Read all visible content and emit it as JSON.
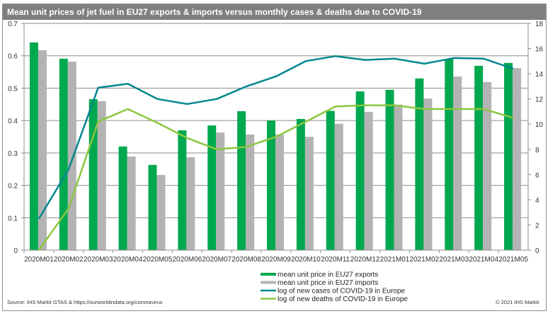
{
  "chart_data": {
    "type": "bar",
    "title": "Mean unit prices of jet fuel in EU27 exports & imports versus monthly cases & deaths due to COVID-19",
    "xlabel": "",
    "ylabel": "",
    "categories": [
      "2020M01",
      "2020M02",
      "2020M03",
      "2020M04",
      "2020M05",
      "2020M06",
      "2020M07",
      "2020M08",
      "2020M09",
      "2020M10",
      "2020M11",
      "2020M12",
      "2021M01",
      "2021M02",
      "2021M03",
      "2021M04",
      "2021M05"
    ],
    "ylim": [
      0,
      0.7
    ],
    "y_ticks": [
      "0",
      "0.1",
      "0.2",
      "0.3",
      "0.4",
      "0.5",
      "0.6",
      "0.7"
    ],
    "y2lim": [
      0,
      18
    ],
    "y2_ticks": [
      "0",
      "2",
      "4",
      "6",
      "8",
      "10",
      "12",
      "14",
      "16",
      "18"
    ],
    "grid": true,
    "legend_position": "bottom-center",
    "series": [
      {
        "name": "mean unit price in EU27 exports",
        "type": "bar",
        "axis": "left",
        "color": "#00a84f",
        "values": [
          0.641,
          0.591,
          0.466,
          0.32,
          0.263,
          0.37,
          0.385,
          0.429,
          0.4,
          0.405,
          0.43,
          0.49,
          0.495,
          0.53,
          0.59,
          0.569,
          0.578
        ]
      },
      {
        "name": "mean unit price in EU27 imports",
        "type": "bar",
        "axis": "left",
        "color": "#b3b3b3",
        "values": [
          0.617,
          0.582,
          0.46,
          0.289,
          0.232,
          0.287,
          0.363,
          0.357,
          0.357,
          0.35,
          0.39,
          0.427,
          0.449,
          0.468,
          0.536,
          0.519,
          0.562
        ]
      },
      {
        "name": "log of new  cases of COVID-19 in Europe",
        "type": "line",
        "axis": "right",
        "color": "#00878f",
        "values": [
          2.5,
          6.4,
          12.9,
          13.2,
          12.0,
          11.6,
          12.0,
          13.0,
          13.8,
          15.0,
          15.4,
          15.1,
          15.2,
          14.8,
          15.25,
          15.2,
          14.4
        ]
      },
      {
        "name": "log of new  deaths  of COVID-19 in Europe",
        "type": "line",
        "axis": "right",
        "color": "#8cc63f",
        "values": [
          0.0,
          3.3,
          10.2,
          11.2,
          10.1,
          8.9,
          8.0,
          8.2,
          9.0,
          10.2,
          11.4,
          11.5,
          11.5,
          11.2,
          11.2,
          11.2,
          10.5
        ]
      }
    ],
    "source": "Source: IHS Markit GTAS & https://ourworldindata.org/coronavirus",
    "copyright": "© 2021 IHS Markit"
  }
}
